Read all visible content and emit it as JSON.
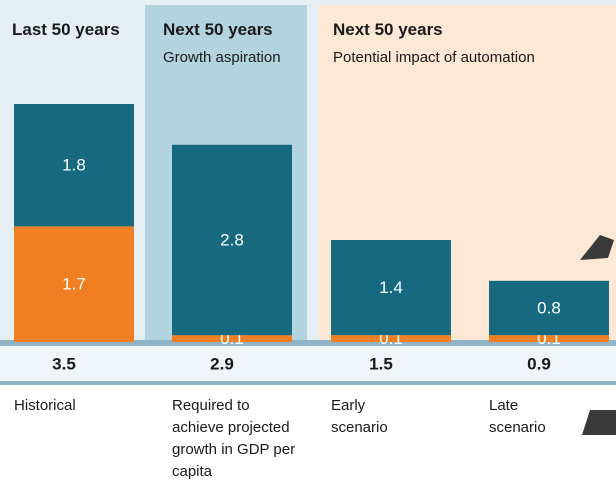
{
  "chart_data": {
    "type": "stacked-bar",
    "column_headers": [
      {
        "title": "Last 50 years"
      },
      {
        "title": "Next 50 years",
        "subtitle": "Growth aspiration"
      },
      {
        "title": "Next 50 years",
        "subtitle": "Potential impact of automation"
      }
    ],
    "categories": [
      "Historical",
      "Required to achieve projected growth in GDP per capita",
      "Early scenario",
      "Late scenario"
    ],
    "series": [
      {
        "color": "#ef7f22",
        "values": [
          1.7,
          0.1,
          0.1,
          0.1
        ]
      },
      {
        "color": "#17697f",
        "values": [
          1.8,
          2.8,
          1.4,
          0.8
        ]
      }
    ],
    "totals": [
      3.5,
      2.9,
      1.5,
      0.9
    ]
  }
}
